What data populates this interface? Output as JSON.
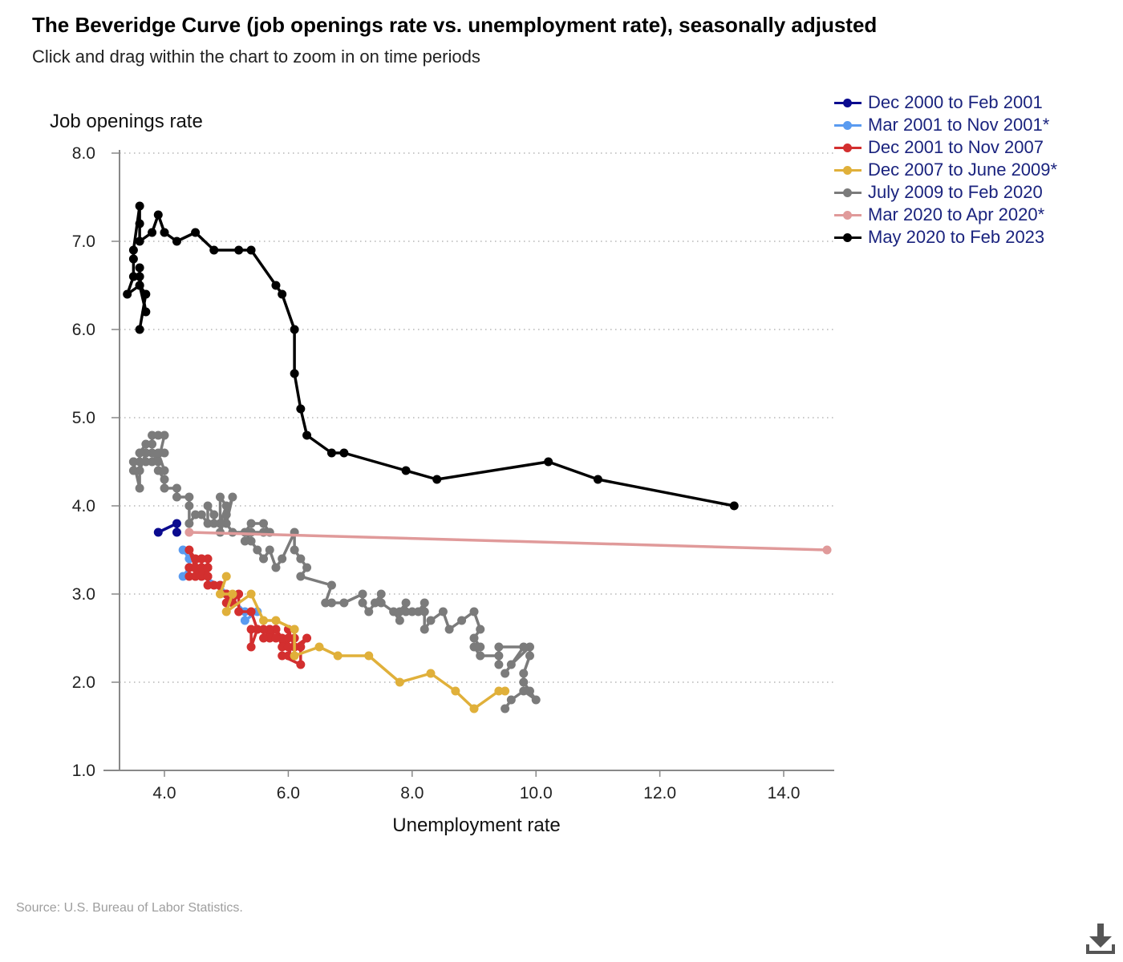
{
  "title": "The Beveridge Curve (job openings rate vs. unemployment rate), seasonally adjusted",
  "subtitle": "Click and drag within the chart to zoom in on time periods",
  "source": "Source: U.S. Bureau of Labor Statistics.",
  "download_icon": "download-icon",
  "chart_data": {
    "type": "scatter",
    "xlabel": "Unemployment rate",
    "ylabel": "Job openings rate",
    "xlim": [
      3.1,
      14.8
    ],
    "ylim": [
      1.0,
      8.0
    ],
    "xticks": [
      "4.0",
      "6.0",
      "8.0",
      "10.0",
      "12.0",
      "14.0"
    ],
    "yticks": [
      "1.0",
      "2.0",
      "3.0",
      "4.0",
      "5.0",
      "6.0",
      "7.0",
      "8.0"
    ],
    "grid": "horizontal dotted",
    "legend_position": "top-right",
    "series": [
      {
        "name": "Dec 2000 to Feb 2001",
        "color": "#0b0b8f",
        "points": [
          [
            3.9,
            3.7
          ],
          [
            4.2,
            3.8
          ],
          [
            4.2,
            3.7
          ]
        ]
      },
      {
        "name": "Mar 2001 to Nov 2001*",
        "color": "#5a9bf0",
        "points": [
          [
            4.3,
            3.5
          ],
          [
            4.4,
            3.4
          ],
          [
            4.4,
            3.3
          ],
          [
            4.3,
            3.2
          ],
          [
            4.6,
            3.2
          ],
          [
            4.9,
            3.1
          ],
          [
            5.0,
            3.0
          ],
          [
            5.3,
            2.8
          ],
          [
            5.3,
            2.7
          ],
          [
            5.5,
            2.8
          ]
        ]
      },
      {
        "name": "Dec 2001 to Nov 2007",
        "color": "#d32f2f",
        "points": [
          [
            5.7,
            2.6
          ],
          [
            5.7,
            2.5
          ],
          [
            5.8,
            2.6
          ],
          [
            5.9,
            2.5
          ],
          [
            5.8,
            2.6
          ],
          [
            5.9,
            2.4
          ],
          [
            6.0,
            2.5
          ],
          [
            6.1,
            2.5
          ],
          [
            6.0,
            2.3
          ],
          [
            5.9,
            2.3
          ],
          [
            6.2,
            2.2
          ],
          [
            6.2,
            2.4
          ],
          [
            6.3,
            2.5
          ],
          [
            6.1,
            2.4
          ],
          [
            6.0,
            2.6
          ],
          [
            6.0,
            2.4
          ],
          [
            5.8,
            2.5
          ],
          [
            5.7,
            2.6
          ],
          [
            5.6,
            2.5
          ],
          [
            5.6,
            2.6
          ],
          [
            5.5,
            2.6
          ],
          [
            5.4,
            2.4
          ],
          [
            5.4,
            2.6
          ],
          [
            5.5,
            2.6
          ],
          [
            5.4,
            2.8
          ],
          [
            5.2,
            2.8
          ],
          [
            5.2,
            3.0
          ],
          [
            5.1,
            2.9
          ],
          [
            5.0,
            3.0
          ],
          [
            5.0,
            2.9
          ],
          [
            5.0,
            3.0
          ],
          [
            4.8,
            3.1
          ],
          [
            4.9,
            3.1
          ],
          [
            4.7,
            3.1
          ],
          [
            4.7,
            3.3
          ],
          [
            4.6,
            3.2
          ],
          [
            4.6,
            3.3
          ],
          [
            4.6,
            3.4
          ],
          [
            4.5,
            3.4
          ],
          [
            4.4,
            3.5
          ],
          [
            4.5,
            3.3
          ],
          [
            4.5,
            3.2
          ],
          [
            4.4,
            3.2
          ],
          [
            4.4,
            3.3
          ],
          [
            4.6,
            3.2
          ],
          [
            4.7,
            3.3
          ],
          [
            4.7,
            3.4
          ],
          [
            4.6,
            3.4
          ],
          [
            4.4,
            3.3
          ],
          [
            4.5,
            3.3
          ],
          [
            4.7,
            3.2
          ],
          [
            4.6,
            3.3
          ],
          [
            4.5,
            3.2
          ],
          [
            4.7,
            3.3
          ],
          [
            4.7,
            3.2
          ]
        ]
      },
      {
        "name": "Dec 2007 to June 2009*",
        "color": "#e0b03a",
        "points": [
          [
            5.0,
            3.2
          ],
          [
            4.9,
            3.0
          ],
          [
            5.1,
            3.0
          ],
          [
            5.0,
            2.8
          ],
          [
            5.4,
            3.0
          ],
          [
            5.6,
            2.7
          ],
          [
            5.8,
            2.7
          ],
          [
            6.1,
            2.6
          ],
          [
            6.1,
            2.3
          ],
          [
            6.5,
            2.4
          ],
          [
            6.8,
            2.3
          ],
          [
            7.3,
            2.3
          ],
          [
            7.8,
            2.0
          ],
          [
            8.3,
            2.1
          ],
          [
            8.7,
            1.9
          ],
          [
            9.0,
            1.7
          ],
          [
            9.4,
            1.9
          ],
          [
            9.5,
            1.9
          ]
        ]
      },
      {
        "name": "July 2009 to Feb 2020",
        "color": "#7b7b7b",
        "points": [
          [
            9.5,
            1.7
          ],
          [
            9.6,
            1.8
          ],
          [
            9.8,
            1.9
          ],
          [
            10.0,
            1.8
          ],
          [
            9.9,
            1.9
          ],
          [
            9.8,
            2.0
          ],
          [
            9.8,
            2.1
          ],
          [
            9.9,
            2.3
          ],
          [
            9.9,
            2.4
          ],
          [
            9.6,
            2.2
          ],
          [
            9.5,
            2.1
          ],
          [
            9.8,
            2.4
          ],
          [
            9.4,
            2.4
          ],
          [
            9.4,
            2.2
          ],
          [
            9.4,
            2.3
          ],
          [
            9.1,
            2.3
          ],
          [
            9.0,
            2.4
          ],
          [
            9.1,
            2.4
          ],
          [
            9.0,
            2.5
          ],
          [
            9.1,
            2.6
          ],
          [
            9.0,
            2.8
          ],
          [
            8.8,
            2.7
          ],
          [
            8.6,
            2.6
          ],
          [
            8.5,
            2.8
          ],
          [
            8.3,
            2.7
          ],
          [
            8.2,
            2.6
          ],
          [
            8.2,
            2.8
          ],
          [
            8.2,
            2.9
          ],
          [
            8.1,
            2.8
          ],
          [
            8.0,
            2.8
          ],
          [
            7.9,
            2.8
          ],
          [
            7.9,
            2.9
          ],
          [
            7.8,
            2.8
          ],
          [
            7.8,
            2.7
          ],
          [
            7.7,
            2.8
          ],
          [
            7.5,
            2.9
          ],
          [
            7.5,
            3.0
          ],
          [
            7.4,
            2.9
          ],
          [
            7.3,
            2.8
          ],
          [
            7.2,
            2.9
          ],
          [
            7.2,
            3.0
          ],
          [
            6.9,
            2.9
          ],
          [
            6.7,
            2.9
          ],
          [
            6.6,
            2.9
          ],
          [
            6.7,
            3.1
          ],
          [
            6.2,
            3.2
          ],
          [
            6.3,
            3.3
          ],
          [
            6.2,
            3.4
          ],
          [
            6.1,
            3.5
          ],
          [
            6.1,
            3.7
          ],
          [
            5.9,
            3.4
          ],
          [
            5.8,
            3.3
          ],
          [
            5.7,
            3.5
          ],
          [
            5.6,
            3.4
          ],
          [
            5.5,
            3.5
          ],
          [
            5.4,
            3.6
          ],
          [
            5.3,
            3.6
          ],
          [
            5.4,
            3.7
          ],
          [
            5.6,
            3.7
          ],
          [
            5.7,
            3.7
          ],
          [
            5.6,
            3.8
          ],
          [
            5.4,
            3.8
          ],
          [
            5.3,
            3.7
          ],
          [
            5.1,
            3.7
          ],
          [
            5.0,
            3.8
          ],
          [
            5.1,
            4.1
          ],
          [
            5.0,
            3.9
          ],
          [
            4.9,
            3.7
          ],
          [
            4.9,
            3.8
          ],
          [
            5.0,
            4.0
          ],
          [
            4.9,
            4.1
          ],
          [
            4.9,
            3.8
          ],
          [
            4.8,
            3.8
          ],
          [
            4.8,
            3.9
          ],
          [
            4.7,
            4.0
          ],
          [
            4.7,
            3.8
          ],
          [
            4.6,
            3.9
          ],
          [
            4.5,
            3.9
          ],
          [
            4.4,
            3.8
          ],
          [
            4.4,
            4.0
          ],
          [
            4.4,
            4.1
          ],
          [
            4.2,
            4.1
          ],
          [
            4.2,
            4.2
          ],
          [
            4.0,
            4.2
          ],
          [
            4.0,
            4.3
          ],
          [
            3.9,
            4.4
          ],
          [
            4.0,
            4.4
          ],
          [
            3.9,
            4.6
          ],
          [
            4.0,
            4.6
          ],
          [
            3.8,
            4.5
          ],
          [
            3.7,
            4.5
          ],
          [
            3.6,
            4.5
          ],
          [
            3.5,
            4.5
          ],
          [
            3.5,
            4.4
          ],
          [
            3.6,
            4.4
          ],
          [
            3.7,
            4.6
          ],
          [
            3.6,
            4.6
          ],
          [
            3.7,
            4.7
          ],
          [
            3.8,
            4.7
          ],
          [
            3.8,
            4.8
          ],
          [
            3.9,
            4.8
          ],
          [
            4.0,
            4.8
          ],
          [
            3.9,
            4.5
          ],
          [
            3.8,
            4.6
          ],
          [
            3.7,
            4.6
          ],
          [
            3.6,
            4.6
          ],
          [
            3.6,
            4.2
          ],
          [
            3.5,
            4.5
          ]
        ]
      },
      {
        "name": "Mar 2020 to Apr 2020*",
        "color": "#e09a9a",
        "points": [
          [
            4.4,
            3.7
          ],
          [
            14.7,
            3.5
          ]
        ]
      },
      {
        "name": "May 2020 to Feb 2023",
        "color": "#000000",
        "points": [
          [
            13.2,
            4.0
          ],
          [
            11.0,
            4.3
          ],
          [
            10.2,
            4.5
          ],
          [
            8.4,
            4.3
          ],
          [
            7.9,
            4.4
          ],
          [
            6.9,
            4.6
          ],
          [
            6.7,
            4.6
          ],
          [
            6.3,
            4.8
          ],
          [
            6.2,
            5.1
          ],
          [
            6.1,
            5.5
          ],
          [
            6.1,
            6.0
          ],
          [
            5.9,
            6.4
          ],
          [
            5.8,
            6.5
          ],
          [
            5.4,
            6.9
          ],
          [
            5.2,
            6.9
          ],
          [
            4.8,
            6.9
          ],
          [
            4.5,
            7.1
          ],
          [
            4.2,
            7.0
          ],
          [
            4.0,
            7.1
          ],
          [
            3.9,
            7.3
          ],
          [
            3.8,
            7.1
          ],
          [
            3.6,
            7.0
          ],
          [
            3.6,
            7.2
          ],
          [
            3.6,
            7.4
          ],
          [
            3.5,
            6.9
          ],
          [
            3.5,
            6.8
          ],
          [
            3.5,
            6.6
          ],
          [
            3.4,
            6.4
          ],
          [
            3.6,
            6.5
          ],
          [
            3.7,
            6.2
          ],
          [
            3.6,
            6.6
          ],
          [
            3.6,
            6.7
          ],
          [
            3.6,
            6.5
          ],
          [
            3.7,
            6.4
          ],
          [
            3.6,
            6.0
          ]
        ]
      }
    ]
  }
}
